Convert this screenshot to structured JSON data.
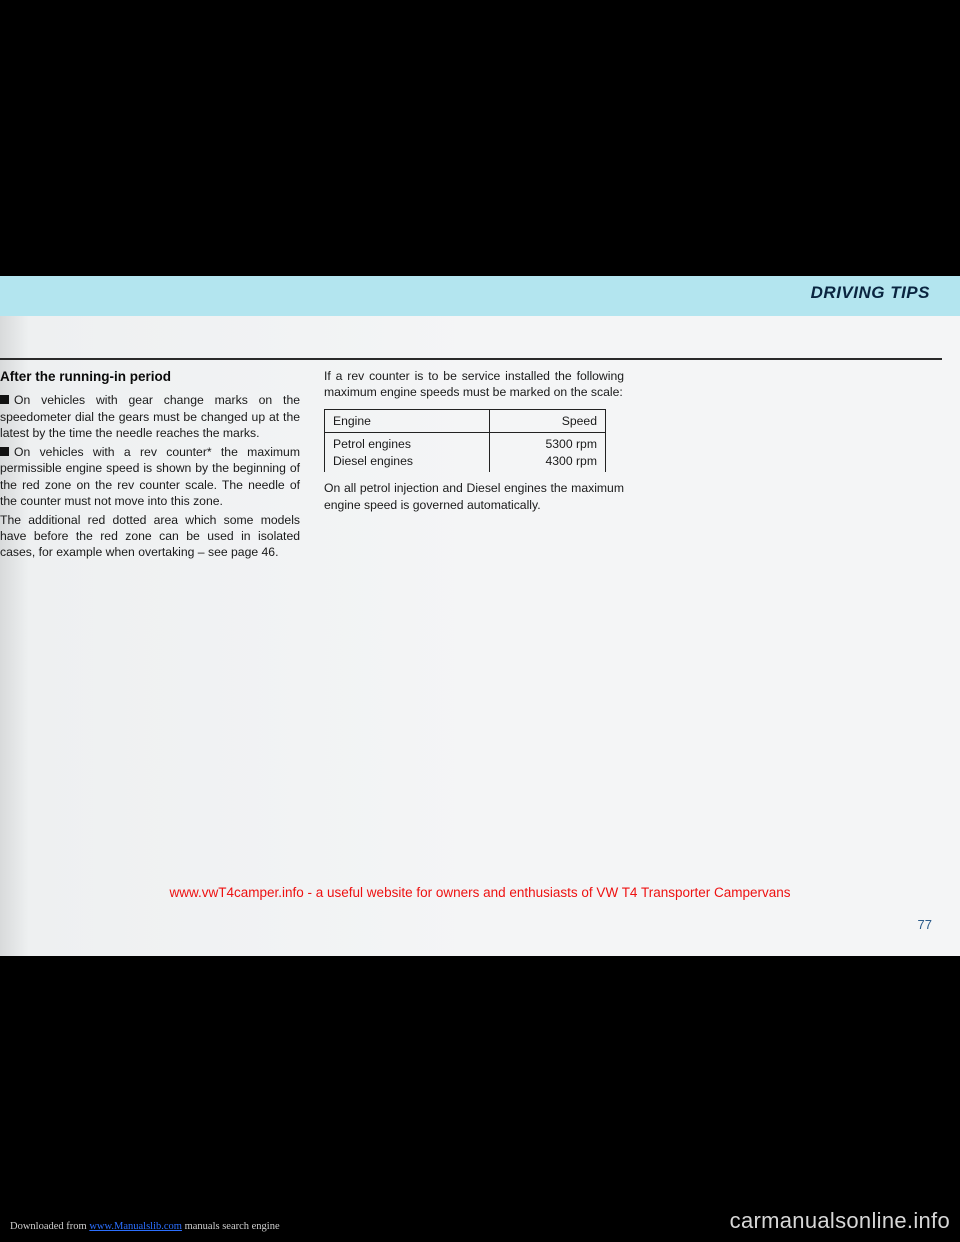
{
  "header": {
    "title": "DRIVING TIPS"
  },
  "section": {
    "heading": "After the running-in period"
  },
  "col1": {
    "p1": "On vehicles with gear change marks on the speedometer dial the gears must be changed up at the latest by the time the needle reaches the marks.",
    "p2": "On vehicles with a rev counter* the maximum permissible engine speed is shown by the beginning of the red zone on the rev counter scale. The needle of the counter must not move into this zone.",
    "p3": "The additional red dotted area which some models have before the red zone can be used in isolated cases, for example when overtaking – see page 46."
  },
  "col2": {
    "intro": "If a rev counter is to be service installed the following maximum engine speeds must be marked on the scale:",
    "table": {
      "header": [
        "Engine",
        "Speed"
      ],
      "rows": [
        [
          "Petrol engines",
          "5300 rpm"
        ],
        [
          "Diesel engines",
          "4300 rpm"
        ]
      ]
    },
    "outro": "On all petrol injection and Diesel engines the maximum engine speed is governed automatically."
  },
  "footer": {
    "red": "www.vwT4camper.info - a useful website for owners and enthusiasts of VW T4 Transporter Campervans",
    "page": "77",
    "download_pre": "Downloaded from ",
    "download_link": "www.Manualslib.com",
    "download_post": " manuals search engine",
    "watermark": "carmanualsonline.info"
  }
}
